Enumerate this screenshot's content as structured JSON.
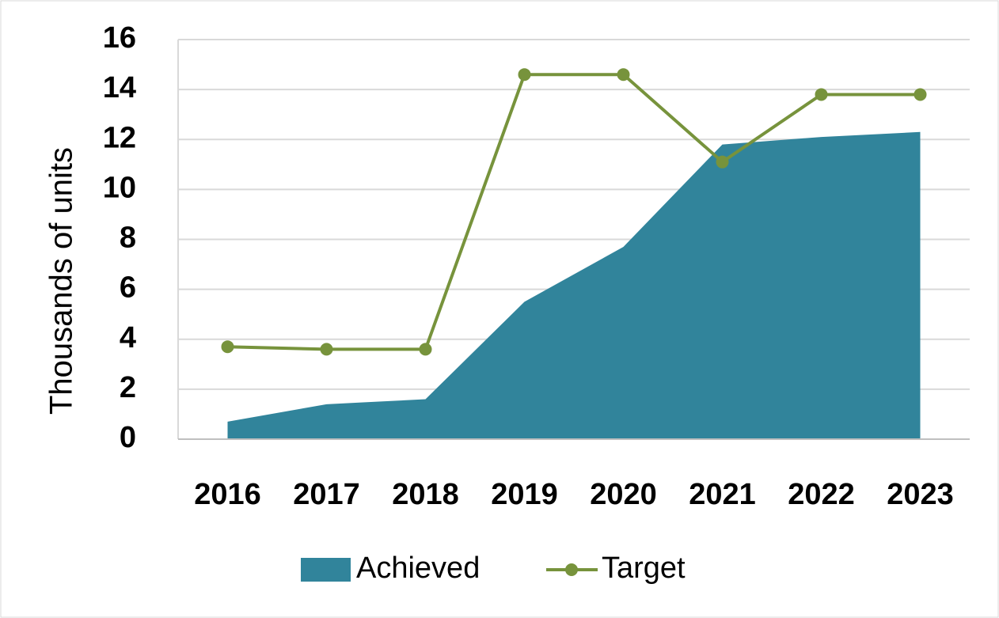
{
  "chart_data": {
    "type": "line",
    "y_label": "Thousands of units",
    "categories": [
      "2016",
      "2017",
      "2018",
      "2019",
      "2020",
      "2021",
      "2022",
      "2023"
    ],
    "series": [
      {
        "name": "Achieved",
        "type": "area",
        "color": "#31849b",
        "values": [
          0.7,
          1.4,
          1.6,
          5.5,
          7.7,
          11.8,
          12.1,
          12.3
        ]
      },
      {
        "name": "Target",
        "type": "line",
        "color": "#77933c",
        "values": [
          3.7,
          3.6,
          3.6,
          14.6,
          14.6,
          11.1,
          13.8,
          13.8
        ]
      }
    ],
    "ylim": [
      0,
      16
    ],
    "yticks": [
      0,
      2,
      4,
      6,
      8,
      10,
      12,
      14,
      16
    ],
    "grid": true,
    "legend": "bottom"
  }
}
